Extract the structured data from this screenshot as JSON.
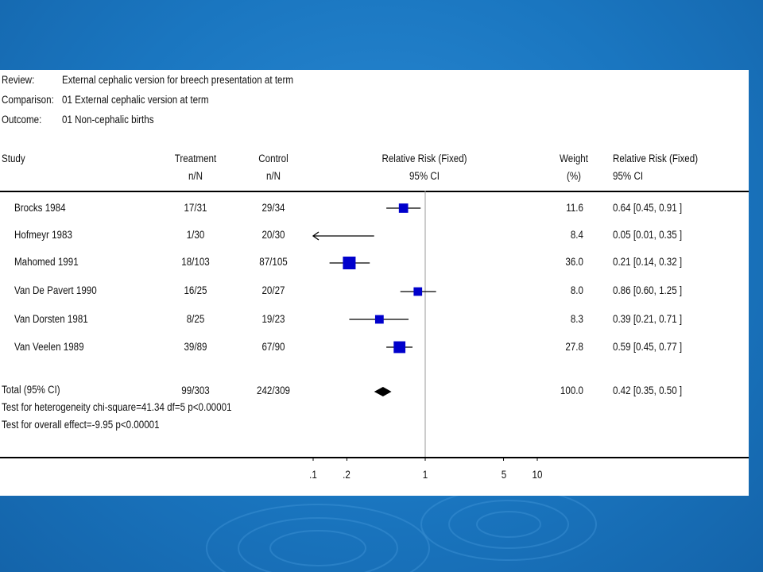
{
  "header": {
    "review_label": "Review:",
    "review_value": "External cephalic version for breech presentation at term",
    "comparison_label": "Comparison:",
    "comparison_value": "01 External cephalic version at term",
    "outcome_label": "Outcome:",
    "outcome_value": "01 Non-cephalic births"
  },
  "columns": {
    "study": "Study",
    "treatment": "Treatment",
    "treatment_sub": "n/N",
    "control": "Control",
    "control_sub": "n/N",
    "rr": "Relative Risk (Fixed)",
    "rr_sub": "95% CI",
    "weight": "Weight",
    "weight_sub": "(%)",
    "rr_right": "Relative Risk (Fixed)",
    "rr_right_sub": "95% CI"
  },
  "chart_data": {
    "type": "forest",
    "scale": "log",
    "xlim": [
      0.1,
      10
    ],
    "ticks": [
      0.1,
      0.2,
      1,
      5,
      10
    ],
    "tick_labels": [
      ".1",
      ".2",
      "1",
      "5",
      "10"
    ],
    "null_line": 1,
    "studies": [
      {
        "name": "Brocks 1984",
        "treatment": "17/31",
        "control": "29/34",
        "weight": 11.6,
        "weight_label": "11.6",
        "rr": 0.64,
        "lo": 0.45,
        "hi": 0.91,
        "ci_label": "0.64 [0.45, 0.91 ]"
      },
      {
        "name": "Hofmeyr 1983",
        "treatment": "1/30",
        "control": "20/30",
        "weight": 8.4,
        "weight_label": "8.4",
        "rr": 0.05,
        "lo": 0.01,
        "hi": 0.35,
        "ci_label": "0.05 [0.01, 0.35 ]"
      },
      {
        "name": "Mahomed 1991",
        "treatment": "18/103",
        "control": "87/105",
        "weight": 36.0,
        "weight_label": "36.0",
        "rr": 0.21,
        "lo": 0.14,
        "hi": 0.32,
        "ci_label": "0.21 [0.14, 0.32 ]"
      },
      {
        "name": "Van De Pavert 1990",
        "treatment": "16/25",
        "control": "20/27",
        "weight": 8.0,
        "weight_label": "8.0",
        "rr": 0.86,
        "lo": 0.6,
        "hi": 1.25,
        "ci_label": "0.86 [0.60, 1.25 ]"
      },
      {
        "name": "Van Dorsten 1981",
        "treatment": "8/25",
        "control": "19/23",
        "weight": 8.3,
        "weight_label": "8.3",
        "rr": 0.39,
        "lo": 0.21,
        "hi": 0.71,
        "ci_label": "0.39 [0.21, 0.71 ]"
      },
      {
        "name": "Van Veelen 1989",
        "treatment": "39/89",
        "control": "67/90",
        "weight": 27.8,
        "weight_label": "27.8",
        "rr": 0.59,
        "lo": 0.45,
        "hi": 0.77,
        "ci_label": "0.59 [0.45, 0.77 ]"
      }
    ],
    "total": {
      "name": "Total (95% CI)",
      "treatment": "99/303",
      "control": "242/309",
      "weight_label": "100.0",
      "rr": 0.42,
      "lo": 0.35,
      "hi": 0.5,
      "ci_label": "0.42 [0.35, 0.50 ]"
    },
    "heterogeneity": "Test for heterogeneity chi-square=41.34 df=5 p<0.00001",
    "overall_effect": "Test for overall effect=-9.95 p<0.00001"
  }
}
